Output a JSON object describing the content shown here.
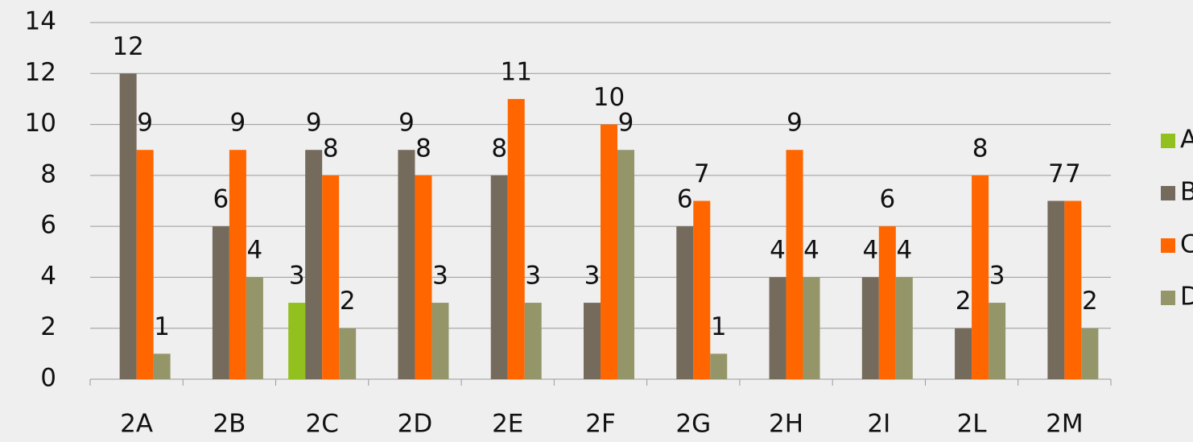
{
  "chart_data": {
    "type": "bar",
    "categories": [
      "2A",
      "2B",
      "2C",
      "2D",
      "2E",
      "2F",
      "2G",
      "2H",
      "2I",
      "2L",
      "2M"
    ],
    "series": [
      {
        "name": "A",
        "color": "#92c01f",
        "values": [
          null,
          null,
          3,
          null,
          null,
          null,
          null,
          null,
          null,
          null,
          null
        ]
      },
      {
        "name": "B",
        "color": "#756b5c",
        "values": [
          12,
          6,
          9,
          9,
          8,
          3,
          6,
          4,
          4,
          2,
          7
        ]
      },
      {
        "name": "C",
        "color": "#ff6600",
        "values": [
          9,
          9,
          8,
          8,
          11,
          10,
          7,
          9,
          6,
          8,
          7
        ]
      },
      {
        "name": "D",
        "color": "#94966a",
        "values": [
          1,
          4,
          2,
          3,
          3,
          9,
          1,
          4,
          4,
          3,
          2
        ]
      }
    ],
    "ylim": [
      0,
      14
    ],
    "yticks": [
      0,
      2,
      4,
      6,
      8,
      10,
      12,
      14
    ],
    "grid": true,
    "legend": "right"
  }
}
